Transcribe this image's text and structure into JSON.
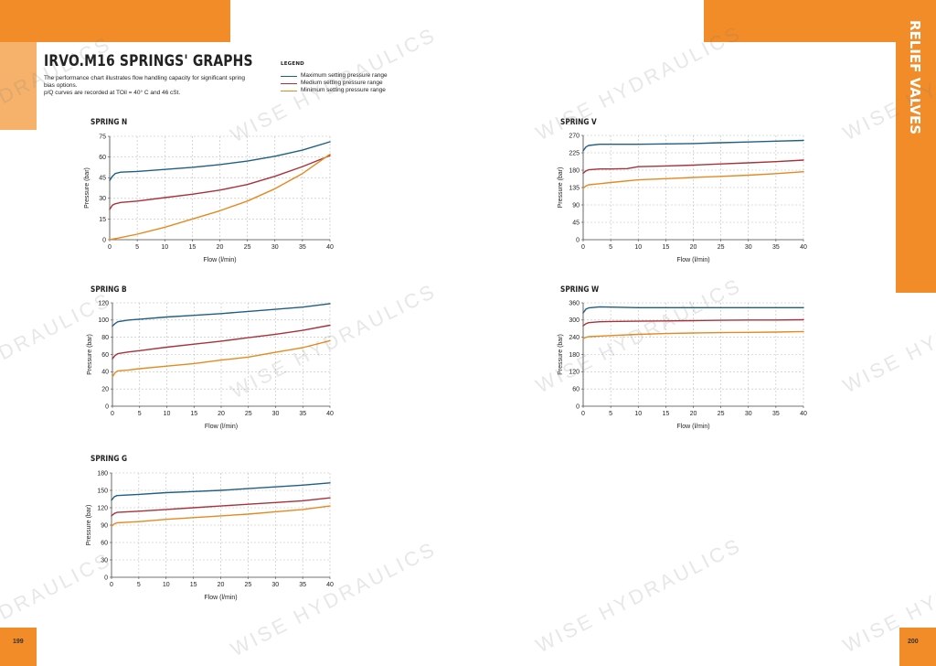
{
  "left_page": {
    "title": "IRVO.M16 SPRINGS' GRAPHS",
    "description_lines": [
      "The performance chart illustrates flow handling capacity for significant spring",
      "bias options.",
      "p/Q curves are recorded at TOil = 40° C and 46 cSt."
    ],
    "page_number": "199"
  },
  "legend": {
    "title": "LEGEND",
    "items": [
      {
        "label": "Maximum setting pressure range",
        "color": "#1f5f84"
      },
      {
        "label": "Medium setting pressure range",
        "color": "#a8323a"
      },
      {
        "label": "Minimum setting pressure range",
        "color": "#e58a1f"
      }
    ]
  },
  "right_page": {
    "side_tab": "RELIEF VALVES",
    "page_number": "200"
  },
  "watermark": "WISE HYDRAULICS",
  "watermark_fragment": "DRAULICS",
  "colors": {
    "accent": "#f28c28",
    "accent_light": "#f6b26b",
    "grid": "#bdbdbd"
  },
  "chart_data": [
    {
      "type": "line",
      "title": "SPRING N",
      "xlabel": "Flow (l/min)",
      "ylabel": "Pressure (bar)",
      "xlim": [
        0,
        40
      ],
      "ylim": [
        0,
        75
      ],
      "xticks": [
        0,
        5,
        10,
        15,
        20,
        25,
        30,
        35,
        40
      ],
      "yticks": [
        0,
        15,
        30,
        45,
        60,
        75
      ],
      "grid": true,
      "series": [
        {
          "name": "Maximum setting pressure range",
          "color": "#1f5f84",
          "x": [
            0,
            0.5,
            1,
            2,
            5,
            10,
            15,
            20,
            25,
            30,
            35,
            40
          ],
          "y": [
            43,
            46,
            48,
            49,
            49.5,
            51,
            52.5,
            54.5,
            57,
            60.5,
            65,
            71
          ]
        },
        {
          "name": "Medium setting pressure range",
          "color": "#a8323a",
          "x": [
            0,
            0.5,
            1,
            2,
            5,
            10,
            15,
            20,
            25,
            30,
            35,
            40
          ],
          "y": [
            22,
            25,
            26,
            27,
            28,
            30.5,
            33,
            36,
            40,
            46,
            53,
            61
          ]
        },
        {
          "name": "Minimum setting pressure range",
          "color": "#e58a1f",
          "x": [
            0,
            2,
            5,
            10,
            15,
            20,
            25,
            30,
            35,
            40
          ],
          "y": [
            0,
            1.5,
            4,
            9,
            15,
            21,
            28,
            37,
            48,
            62
          ]
        }
      ]
    },
    {
      "type": "line",
      "title": "SPRING V",
      "xlabel": "Flow (l/min)",
      "ylabel": "Pressure (bar)",
      "xlim": [
        0,
        40
      ],
      "ylim": [
        0,
        270
      ],
      "xticks": [
        0,
        5,
        10,
        15,
        20,
        25,
        30,
        35,
        40
      ],
      "yticks": [
        0,
        45,
        90,
        135,
        180,
        225,
        270
      ],
      "grid": true,
      "series": [
        {
          "name": "Maximum setting pressure range",
          "color": "#1f5f84",
          "x": [
            0,
            0.5,
            1,
            3,
            5,
            10,
            15,
            20,
            25,
            30,
            35,
            40
          ],
          "y": [
            230,
            240,
            244,
            247,
            247,
            247,
            248,
            249,
            251,
            253,
            255,
            257
          ]
        },
        {
          "name": "Medium setting pressure range",
          "color": "#a8323a",
          "x": [
            0,
            0.5,
            1,
            3,
            5,
            8,
            10,
            15,
            20,
            25,
            30,
            35,
            40
          ],
          "y": [
            172,
            178,
            181,
            183,
            183,
            184,
            189,
            191,
            193,
            196,
            199,
            202,
            206
          ]
        },
        {
          "name": "Minimum setting pressure range",
          "color": "#e58a1f",
          "x": [
            0,
            0.5,
            1,
            3,
            5,
            10,
            15,
            20,
            25,
            30,
            35,
            40
          ],
          "y": [
            133,
            139,
            142,
            145,
            148,
            155,
            158,
            161,
            164,
            167,
            171,
            176
          ]
        }
      ]
    },
    {
      "type": "line",
      "title": "SPRING B",
      "xlabel": "Flow (l/min)",
      "ylabel": "Pressure (bar)",
      "xlim": [
        0,
        40
      ],
      "ylim": [
        0,
        120
      ],
      "xticks": [
        0,
        5,
        10,
        15,
        20,
        25,
        30,
        35,
        40
      ],
      "yticks": [
        0,
        20,
        40,
        60,
        80,
        100,
        120
      ],
      "grid": true,
      "series": [
        {
          "name": "Maximum setting pressure range",
          "color": "#1f5f84",
          "x": [
            0,
            0.5,
            1,
            3,
            5,
            10,
            15,
            20,
            25,
            30,
            35,
            40
          ],
          "y": [
            93,
            96,
            98,
            100,
            101,
            103.5,
            105.5,
            107.5,
            110,
            112.5,
            115,
            119
          ]
        },
        {
          "name": "Medium setting pressure range",
          "color": "#a8323a",
          "x": [
            0,
            0.5,
            1,
            3,
            5,
            10,
            15,
            20,
            25,
            30,
            35,
            40
          ],
          "y": [
            55,
            59,
            61,
            63,
            64.5,
            68.5,
            72,
            75.5,
            79.5,
            83.5,
            88,
            94
          ]
        },
        {
          "name": "Minimum setting pressure range",
          "color": "#e58a1f",
          "x": [
            0,
            0.5,
            1,
            3,
            5,
            10,
            15,
            20,
            25,
            30,
            35,
            40
          ],
          "y": [
            34,
            39,
            41,
            42,
            43.5,
            46.5,
            49.5,
            53.5,
            57,
            62.5,
            68,
            76
          ]
        }
      ]
    },
    {
      "type": "line",
      "title": "SPRING W",
      "xlabel": "Flow (l/min)",
      "ylabel": "Pressure (bar)",
      "xlim": [
        0,
        40
      ],
      "ylim": [
        0,
        360
      ],
      "xticks": [
        0,
        5,
        10,
        15,
        20,
        25,
        30,
        35,
        40
      ],
      "yticks": [
        0,
        60,
        120,
        180,
        240,
        300,
        360
      ],
      "grid": true,
      "series": [
        {
          "name": "Maximum setting pressure range",
          "color": "#1f5f84",
          "x": [
            0,
            0.5,
            1,
            3,
            5,
            10,
            15,
            20,
            25,
            30,
            35,
            40
          ],
          "y": [
            325,
            338,
            342,
            346,
            345,
            343,
            343,
            343,
            343,
            343,
            343,
            343
          ]
        },
        {
          "name": "Medium setting pressure range",
          "color": "#a8323a",
          "x": [
            0,
            0.5,
            1,
            3,
            5,
            10,
            15,
            20,
            25,
            30,
            35,
            40
          ],
          "y": [
            280,
            287,
            291,
            294,
            295,
            296,
            297,
            298,
            299,
            300,
            300,
            301
          ]
        },
        {
          "name": "Minimum setting pressure range",
          "color": "#e58a1f",
          "x": [
            0,
            0.5,
            1,
            3,
            5,
            10,
            15,
            20,
            25,
            30,
            35,
            40
          ],
          "y": [
            235,
            240,
            242,
            244,
            246,
            250,
            253,
            255,
            256,
            257,
            258,
            260
          ]
        }
      ]
    },
    {
      "type": "line",
      "title": "SPRING G",
      "xlabel": "Flow (l/min)",
      "ylabel": "Pressure (bar)",
      "xlim": [
        0,
        40
      ],
      "ylim": [
        0,
        180
      ],
      "xticks": [
        0,
        5,
        10,
        15,
        20,
        25,
        30,
        35,
        40
      ],
      "yticks": [
        0,
        30,
        60,
        90,
        120,
        150,
        180
      ],
      "grid": true,
      "series": [
        {
          "name": "Maximum setting pressure range",
          "color": "#1f5f84",
          "x": [
            0,
            0.5,
            1,
            3,
            5,
            10,
            15,
            20,
            25,
            30,
            35,
            40
          ],
          "y": [
            133,
            139,
            141,
            142,
            143,
            146,
            148,
            150,
            153,
            156,
            159,
            163
          ]
        },
        {
          "name": "Medium setting pressure range",
          "color": "#a8323a",
          "x": [
            0,
            0.5,
            1,
            3,
            5,
            10,
            15,
            20,
            25,
            30,
            35,
            40
          ],
          "y": [
            106,
            110,
            112,
            113,
            114,
            117,
            120,
            123,
            126,
            129,
            132,
            137
          ]
        },
        {
          "name": "Minimum setting pressure range",
          "color": "#e58a1f",
          "x": [
            0,
            0.5,
            1,
            3,
            5,
            10,
            15,
            20,
            25,
            30,
            35,
            40
          ],
          "y": [
            88,
            92,
            94,
            95,
            96,
            100,
            103,
            106,
            109,
            113,
            117,
            123
          ]
        }
      ]
    }
  ]
}
